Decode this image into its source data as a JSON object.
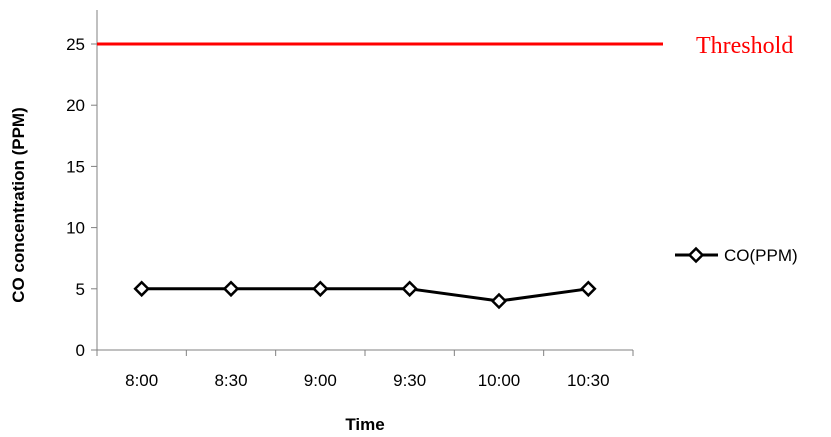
{
  "chart_data": {
    "type": "line",
    "categories": [
      "8:00",
      "8:30",
      "9:00",
      "9:30",
      "10:00",
      "10:30"
    ],
    "series": [
      {
        "name": "CO(PPM)",
        "values": [
          5,
          5,
          5,
          5,
          4,
          5
        ],
        "color": "#000000",
        "marker": "diamond-open"
      }
    ],
    "threshold": {
      "label": "Threshold",
      "value": 25,
      "color": "#ff0000"
    },
    "xlabel": "Time",
    "ylabel": "CO concentration (PPM)",
    "ylim": [
      0,
      25
    ],
    "yticks": [
      0,
      5,
      10,
      15,
      20,
      25
    ],
    "grid": false,
    "legend": "right"
  }
}
